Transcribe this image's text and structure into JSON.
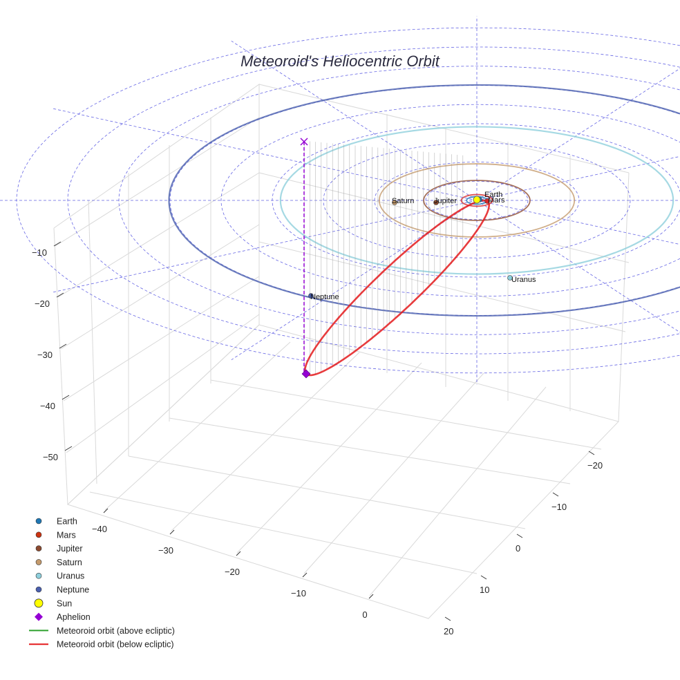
{
  "chart_data": {
    "type": "scatter",
    "title": "Meteoroid's Heliocentric Orbit",
    "projection": "3d",
    "axes": {
      "x": {
        "ticks": [
          -40,
          -30,
          -20,
          -10,
          0
        ],
        "range": [
          -45,
          5
        ]
      },
      "y": {
        "ticks": [
          -20,
          -10,
          0,
          10,
          20
        ],
        "range": [
          -25,
          25
        ]
      },
      "z": {
        "ticks": [
          -10,
          -20,
          -30,
          -40,
          -50
        ],
        "range": [
          -58,
          0
        ]
      }
    },
    "grid": true,
    "ecliptic_grid": {
      "rings_au": [
        5,
        10,
        15,
        20,
        25,
        30,
        35,
        40,
        45
      ],
      "radial_lines": 12
    },
    "planets": [
      {
        "name": "Earth",
        "color": "#1f77b4",
        "orbit_au": 1.0,
        "label": "Earth"
      },
      {
        "name": "Mars",
        "color": "#d62728",
        "orbit_au": 1.52,
        "label": "Mars"
      },
      {
        "name": "Jupiter",
        "color": "#8c4a2f",
        "orbit_au": 5.2,
        "label": "Jupiter"
      },
      {
        "name": "Saturn",
        "color": "#c49a6c",
        "orbit_au": 9.54,
        "label": "Saturn"
      },
      {
        "name": "Uranus",
        "color": "#8ecfdc",
        "orbit_au": 19.2,
        "label": "Uranus"
      },
      {
        "name": "Neptune",
        "color": "#4a5fae",
        "orbit_au": 30.1,
        "label": "Neptune"
      }
    ],
    "sun": {
      "name": "Sun",
      "color": "#ffff00"
    },
    "aphelion": {
      "name": "Aphelion",
      "color": "#9400d3"
    },
    "meteoroid_orbit": {
      "above_label": "Meteoroid orbit (above ecliptic)",
      "above_color": "#2ca02c",
      "below_label": "Meteoroid orbit (below ecliptic)",
      "below_color": "#e41a1c"
    },
    "legend": {
      "position": "lower-left",
      "entries": [
        {
          "label": "Earth",
          "marker": "dot",
          "color": "#1f77b4"
        },
        {
          "label": "Mars",
          "marker": "dot",
          "color": "#cc3311"
        },
        {
          "label": "Jupiter",
          "marker": "dot",
          "color": "#8c4a2f"
        },
        {
          "label": "Saturn",
          "marker": "dot",
          "color": "#c49a6c"
        },
        {
          "label": "Uranus",
          "marker": "dot",
          "color": "#8ecfdc"
        },
        {
          "label": "Neptune",
          "marker": "dot",
          "color": "#4a5fae"
        },
        {
          "label": "Sun",
          "marker": "bigdot",
          "color": "#ffff00"
        },
        {
          "label": "Aphelion",
          "marker": "diamond",
          "color": "#9400d3"
        },
        {
          "label": "Meteoroid orbit (above ecliptic)",
          "marker": "line",
          "color": "#2ca02c"
        },
        {
          "label": "Meteoroid orbit (below ecliptic)",
          "marker": "line",
          "color": "#e41a1c"
        }
      ]
    }
  }
}
